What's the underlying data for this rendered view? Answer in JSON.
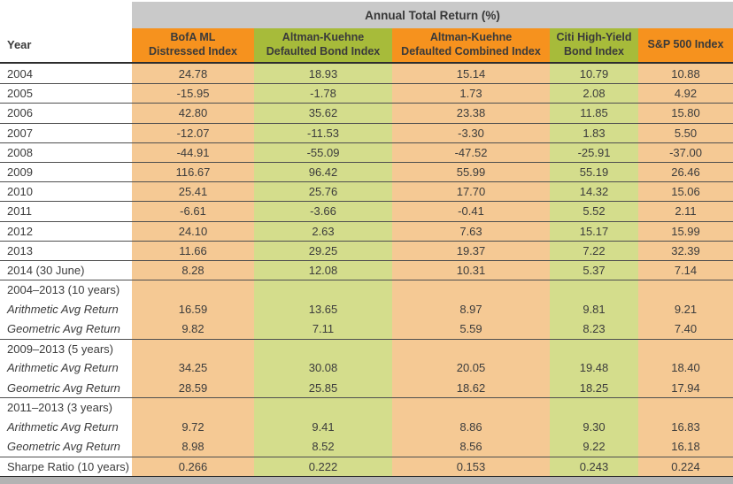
{
  "chart_data": {
    "type": "table",
    "title": "Annual Total Return (%)",
    "columns": [
      {
        "label": "Year",
        "header_bg": "white",
        "cell_bg": "#ffffff"
      },
      {
        "label": "BofA ML\nDistressed Index",
        "header_bg": "#f6921e",
        "cell_bg": "#f5c994"
      },
      {
        "label": "Altman-Kuehne\nDefaulted Bond Index",
        "header_bg": "#a7bb3a",
        "cell_bg": "#d4dd8c"
      },
      {
        "label": "Altman-Kuehne\nDefaulted Combined Index",
        "header_bg": "#f6921e",
        "cell_bg": "#f5c994"
      },
      {
        "label": "Citi High-Yield\nBond Index",
        "header_bg": "#a7bb3a",
        "cell_bg": "#d4dd8c"
      },
      {
        "label": "S&P 500 Index",
        "header_bg": "#f6921e",
        "cell_bg": "#f5c994"
      }
    ],
    "rows": [
      {
        "label": "2004",
        "values": [
          "24.78",
          "18.93",
          "15.14",
          "10.79",
          "10.88"
        ],
        "italic": false,
        "separator": false
      },
      {
        "label": "2005",
        "values": [
          "-15.95",
          "-1.78",
          "1.73",
          "2.08",
          "4.92"
        ],
        "italic": false,
        "separator": true
      },
      {
        "label": "2006",
        "values": [
          "42.80",
          "35.62",
          "23.38",
          "11.85",
          "15.80"
        ],
        "italic": false,
        "separator": true
      },
      {
        "label": "2007",
        "values": [
          "-12.07",
          "-11.53",
          "-3.30",
          "1.83",
          "5.50"
        ],
        "italic": false,
        "separator": true
      },
      {
        "label": "2008",
        "values": [
          "-44.91",
          "-55.09",
          "-47.52",
          "-25.91",
          "-37.00"
        ],
        "italic": false,
        "separator": true
      },
      {
        "label": "2009",
        "values": [
          "116.67",
          "96.42",
          "55.99",
          "55.19",
          "26.46"
        ],
        "italic": false,
        "separator": true
      },
      {
        "label": "2010",
        "values": [
          "25.41",
          "25.76",
          "17.70",
          "14.32",
          "15.06"
        ],
        "italic": false,
        "separator": true
      },
      {
        "label": "2011",
        "values": [
          "-6.61",
          "-3.66",
          "-0.41",
          "5.52",
          "2.11"
        ],
        "italic": false,
        "separator": true
      },
      {
        "label": "2012",
        "values": [
          "24.10",
          "2.63",
          "7.63",
          "15.17",
          "15.99"
        ],
        "italic": false,
        "separator": true
      },
      {
        "label": "2013",
        "values": [
          "11.66",
          "29.25",
          "19.37",
          "7.22",
          "32.39"
        ],
        "italic": false,
        "separator": true
      },
      {
        "label": "2014 (30 June)",
        "values": [
          "8.28",
          "12.08",
          "10.31",
          "5.37",
          "7.14"
        ],
        "italic": false,
        "separator": true
      },
      {
        "label": "2004–2013 (10 years)",
        "values": [
          "",
          "",
          "",
          "",
          ""
        ],
        "italic": false,
        "separator": true
      },
      {
        "label": "Arithmetic Avg Return",
        "values": [
          "16.59",
          "13.65",
          "8.97",
          "9.81",
          "9.21"
        ],
        "italic": true,
        "separator": false
      },
      {
        "label": "Geometric Avg Return",
        "values": [
          "9.82",
          "7.11",
          "5.59",
          "8.23",
          "7.40"
        ],
        "italic": true,
        "separator": false
      },
      {
        "label": "2009–2013 (5 years)",
        "values": [
          "",
          "",
          "",
          "",
          ""
        ],
        "italic": false,
        "separator": true
      },
      {
        "label": "Arithmetic Avg Return",
        "values": [
          "34.25",
          "30.08",
          "20.05",
          "19.48",
          "18.40"
        ],
        "italic": true,
        "separator": false
      },
      {
        "label": "Geometric Avg Return",
        "values": [
          "28.59",
          "25.85",
          "18.62",
          "18.25",
          "17.94"
        ],
        "italic": true,
        "separator": false
      },
      {
        "label": "2011–2013 (3 years)",
        "values": [
          "",
          "",
          "",
          "",
          ""
        ],
        "italic": false,
        "separator": true
      },
      {
        "label": "Arithmetic Avg Return",
        "values": [
          "9.72",
          "9.41",
          "8.86",
          "9.30",
          "16.83"
        ],
        "italic": true,
        "separator": false
      },
      {
        "label": "Geometric Avg Return",
        "values": [
          "8.98",
          "8.52",
          "8.56",
          "9.22",
          "16.18"
        ],
        "italic": true,
        "separator": false
      },
      {
        "label": "Sharpe Ratio (10 years)",
        "values": [
          "0.266",
          "0.222",
          "0.153",
          "0.243",
          "0.224"
        ],
        "italic": false,
        "separator": true
      }
    ]
  },
  "colors": {
    "header_orange": "#f6921e",
    "header_green": "#a7bb3a",
    "cell_orange": "#f5c994",
    "cell_green": "#d4dd8c",
    "title_bar_gray": "#c9c9c9",
    "text": "#3c3c3c",
    "row_line": "#4f4f4f",
    "heavy_line": "#2d2d2d",
    "bottom_strip_gray": "#b3b3b3"
  }
}
